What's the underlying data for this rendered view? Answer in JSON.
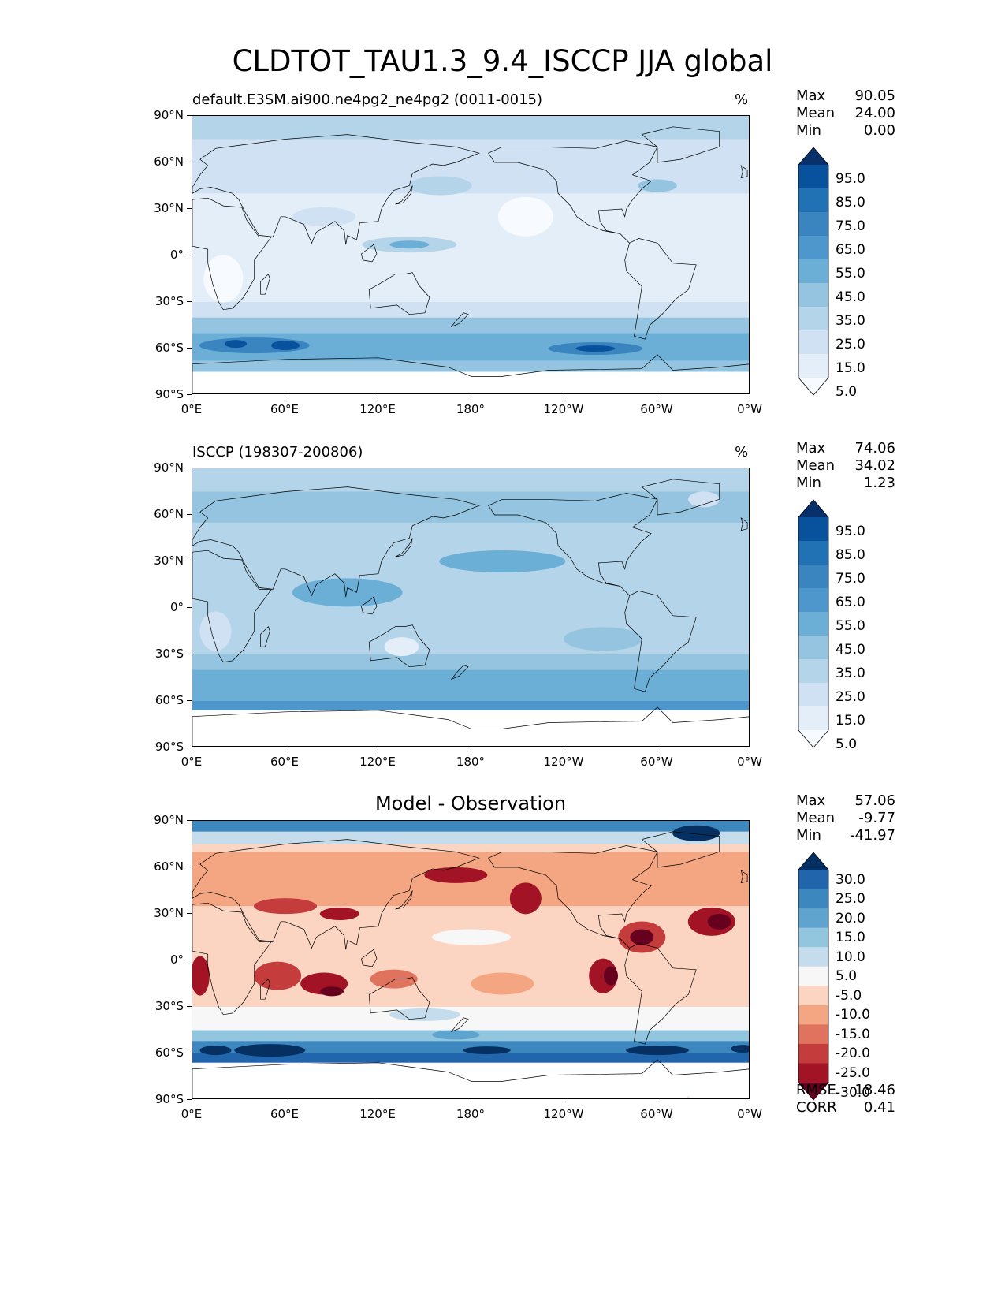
{
  "title": "CLDTOT_TAU1.3_9.4_ISCCP JJA global",
  "lat_ticks": [
    "90°N",
    "60°N",
    "30°N",
    "0°",
    "30°S",
    "60°S",
    "90°S"
  ],
  "lon_ticks": [
    "0°E",
    "60°E",
    "120°E",
    "180°",
    "120°W",
    "60°W",
    "0°W"
  ],
  "panels": [
    {
      "name": "model",
      "title": "default.E3SM.ai900.ne4pg2_ne4pg2 (0011-0015)",
      "unit": "%",
      "stats": [
        {
          "label": "Max",
          "value": "90.05"
        },
        {
          "label": "Mean",
          "value": "24.00"
        },
        {
          "label": "Min",
          "value": "0.00"
        }
      ],
      "colorbar_labels": [
        "95.0",
        "85.0",
        "75.0",
        "65.0",
        "55.0",
        "45.0",
        "35.0",
        "25.0",
        "15.0",
        "5.0"
      ],
      "colorbar_colors": [
        "#08306b",
        "#08519c",
        "#2171b5",
        "#3a84c0",
        "#4d97cc",
        "#6baed6",
        "#94c4df",
        "#b4d4e9",
        "#cfe1f2",
        "#e3eef9",
        "#f7fbff"
      ]
    },
    {
      "name": "obs",
      "title": "ISCCP (198307-200806)",
      "unit": "%",
      "stats": [
        {
          "label": "Max",
          "value": "74.06"
        },
        {
          "label": "Mean",
          "value": "34.02"
        },
        {
          "label": "Min",
          "value": "1.23"
        }
      ],
      "colorbar_labels": [
        "95.0",
        "85.0",
        "75.0",
        "65.0",
        "55.0",
        "45.0",
        "35.0",
        "25.0",
        "15.0",
        "5.0"
      ],
      "colorbar_colors": [
        "#08306b",
        "#08519c",
        "#2171b5",
        "#3a84c0",
        "#4d97cc",
        "#6baed6",
        "#94c4df",
        "#b4d4e9",
        "#cfe1f2",
        "#e3eef9",
        "#f7fbff"
      ]
    },
    {
      "name": "diff",
      "title": "Model - Observation",
      "unit": "",
      "stats": [
        {
          "label": "Max",
          "value": "57.06"
        },
        {
          "label": "Mean",
          "value": "-9.77"
        },
        {
          "label": "Min",
          "value": "-41.97"
        }
      ],
      "colorbar_labels": [
        "30.0",
        "25.0",
        "20.0",
        "15.0",
        "10.0",
        "5.0",
        "-5.0",
        "-10.0",
        "-15.0",
        "-20.0",
        "-25.0",
        "-30.0"
      ],
      "colorbar_colors": [
        "#053061",
        "#2166ac",
        "#3b87be",
        "#5fa4cf",
        "#92c5de",
        "#c4dcec",
        "#f7f7f7",
        "#fbd5c2",
        "#f4a582",
        "#e0735e",
        "#c43c3c",
        "#a31326",
        "#67001f"
      ],
      "metrics": [
        {
          "label": "RMSE",
          "value": "18.46"
        },
        {
          "label": "CORR",
          "value": "0.41"
        }
      ]
    }
  ]
}
